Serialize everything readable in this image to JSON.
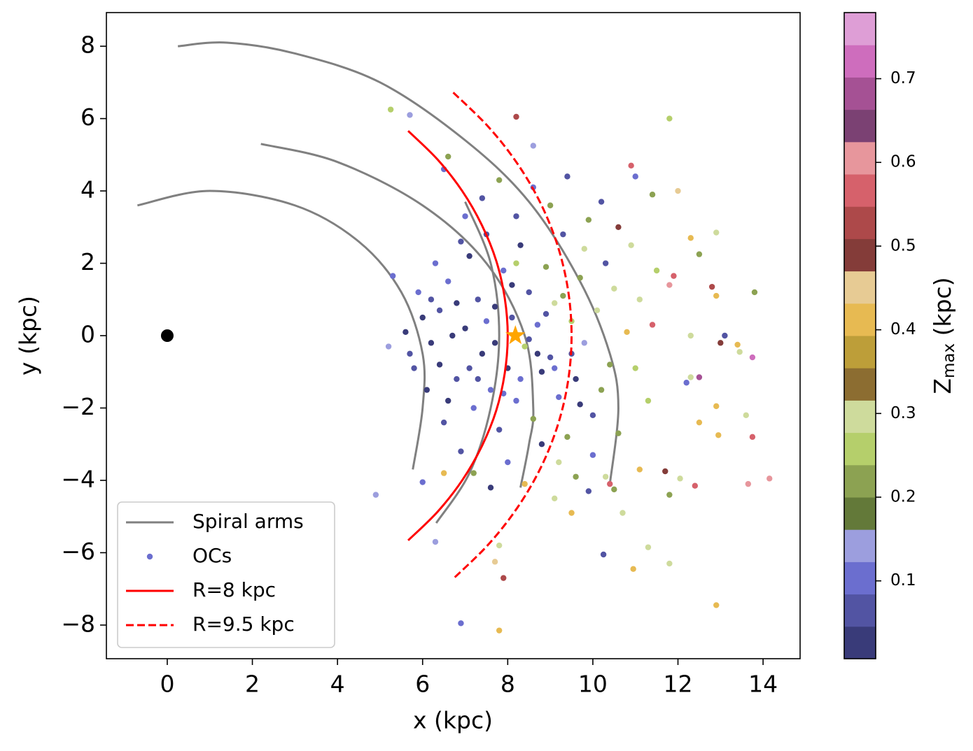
{
  "chart_data": {
    "type": "scatter",
    "xlabel": "x (kpc)",
    "ylabel": "y (kpc)",
    "colorbar_label_parts": [
      "Z",
      "max",
      " (kpc)"
    ],
    "xlim": [
      -1.43,
      14.87
    ],
    "ylim": [
      -8.93,
      8.93
    ],
    "xticks": [
      0,
      2,
      4,
      6,
      8,
      10,
      12,
      14
    ],
    "yticks": [
      {
        "value": -8,
        "label": "−8"
      },
      {
        "value": -6,
        "label": "−6"
      },
      {
        "value": -4,
        "label": "−4"
      },
      {
        "value": -2,
        "label": "−2"
      },
      0,
      2,
      4,
      6,
      8
    ],
    "clim": [
      0.007,
      0.779
    ],
    "cticks": [
      0.1,
      0.2,
      0.3,
      0.4,
      0.5,
      0.6,
      0.7
    ],
    "colormap": [
      "#393b79",
      "#5254a3",
      "#6b6ecf",
      "#9c9ede",
      "#637939",
      "#8ca252",
      "#b5cf6b",
      "#cedb9c",
      "#8c6d31",
      "#bd9e39",
      "#e7ba52",
      "#e7cb94",
      "#843c39",
      "#ad494a",
      "#d6616b",
      "#e7969c",
      "#7b4173",
      "#a55194",
      "#ce6dbd",
      "#de9ed6"
    ],
    "legend": "lower left",
    "galactic_center": {
      "x": 0,
      "y": 0,
      "color": "#000000"
    },
    "sun": {
      "x": 8.18,
      "y": 0,
      "color": "#ffa500"
    },
    "series": [
      {
        "name": "Spiral arms",
        "color": "#808080",
        "style": "solid",
        "lines": [
          {
            "x": [
              0.25,
              1.4,
              3,
              5,
              7,
              8.5,
              9.7,
              10.4,
              10.6,
              10.4
            ],
            "y": [
              8.0,
              8.1,
              7.8,
              7.0,
              5.4,
              3.7,
              1.5,
              -0.5,
              -2.0,
              -4.1
            ]
          },
          {
            "x": [
              2.2,
              4,
              6,
              7.5,
              8.4,
              8.6,
              8.5,
              8.3
            ],
            "y": [
              5.3,
              4.8,
              3.6,
              2.0,
              0,
              -2.0,
              -3.0,
              -4.2
            ]
          },
          {
            "x": [
              -0.7,
              1,
              3,
              4.5,
              5.5,
              6.0,
              6.0,
              5.77
            ],
            "y": [
              3.6,
              4.0,
              3.6,
              2.6,
              1.2,
              -0.5,
              -2.0,
              -3.7
            ]
          },
          {
            "x": [
              7.0,
              7.6,
              7.8,
              7.6,
              7.1,
              6.32
            ],
            "y": [
              3.7,
              2.0,
              0,
              -2.0,
              -3.8,
              -5.18
            ]
          }
        ]
      },
      {
        "name": "OCs",
        "type": "scatter",
        "color": "#6b6ecf",
        "x": [
          5.25,
          5.7,
          8.2,
          11.8,
          8.6,
          6.6,
          6.5,
          10.9,
          11,
          12,
          11.4,
          12.3,
          12.9,
          12.5,
          11.9,
          11.8,
          12.8,
          12.9,
          13.8,
          12.3,
          13,
          13.1,
          13.4,
          13.45,
          13.75,
          12.5,
          12.2,
          12.3,
          12.9,
          13.6,
          13.75,
          12.5,
          12.95,
          12.4,
          13.65,
          14.15,
          12.05,
          11.8,
          11.7,
          11.1,
          11.3,
          11.8,
          10.95,
          10.25,
          12.9,
          7.8,
          6.9,
          7.9,
          7.7,
          7.8,
          4.9,
          5.2,
          5.3,
          6.3,
          6.5,
          6.0,
          10.7,
          10.4,
          10.5,
          9.5,
          9.1,
          6.0,
          6.2,
          6.4,
          6.6,
          6.8,
          7.0,
          7.1,
          7.2,
          7.3,
          7.4,
          7.5,
          7.6,
          7.7,
          7.8,
          7.9,
          8.0,
          8.1,
          8.2,
          8.3,
          8.4,
          8.5,
          8.6,
          8.7,
          8.8,
          8.9,
          9.0,
          9.1,
          9.2,
          9.3,
          9.4,
          9.5,
          9.6,
          9.7,
          9.8,
          9.9,
          10.0,
          10.1,
          10.2,
          10.3,
          10.4,
          10.5,
          10.6,
          10.8,
          11.0,
          11.1,
          11.3,
          11.4,
          11.5,
          5.8,
          5.9,
          6.1,
          6.3,
          6.5,
          6.7,
          6.9,
          7.0,
          7.2,
          7.4,
          7.6,
          7.8,
          8.0,
          8.2,
          8.4,
          8.6,
          8.8,
          9.0,
          9.2,
          9.4,
          9.6,
          9.8,
          10.0,
          10.2,
          6.2,
          6.4,
          6.8,
          7.1,
          7.5,
          7.7,
          8.1,
          8.3,
          8.5,
          8.7,
          8.9,
          9.1,
          9.3,
          9.5,
          9.7,
          7.3,
          6.6,
          6.9,
          7.9,
          8.2,
          5.6,
          5.7,
          10.6,
          10.9,
          9.9,
          10.3
        ],
        "y": [
          6.25,
          6.1,
          6.05,
          6.0,
          5.25,
          4.95,
          4.6,
          4.7,
          4.4,
          4,
          3.9,
          2.7,
          2.85,
          2.25,
          1.65,
          1.4,
          1.35,
          1.1,
          1.2,
          0,
          -0.2,
          0,
          -0.25,
          -0.45,
          -0.6,
          -1.15,
          -1.3,
          -1.15,
          -1.95,
          -2.2,
          -2.8,
          -2.4,
          -2.75,
          -4.15,
          -4.1,
          -3.95,
          -3.95,
          -4.4,
          -3.75,
          -3.7,
          -5.85,
          -6.3,
          -6.45,
          -6.05,
          -7.45,
          -8.15,
          -7.95,
          -6.7,
          -6.25,
          -5.8,
          -4.4,
          -0.3,
          1.65,
          -5.7,
          -3.8,
          -4.05,
          -4.9,
          -4.1,
          -4.25,
          -4.9,
          -4.5,
          0.5,
          1.0,
          -0.8,
          1.5,
          -1.2,
          0.2,
          2.2,
          -2.0,
          1.0,
          -0.5,
          2.8,
          -1.5,
          0.8,
          -2.6,
          1.8,
          -0.9,
          0.5,
          -1.8,
          2.5,
          -0.3,
          1.2,
          -2.3,
          0.3,
          -1.0,
          1.9,
          -0.6,
          0.9,
          -1.7,
          2.8,
          -2.8,
          0.4,
          -1.2,
          1.6,
          -0.2,
          3.2,
          -2.2,
          0.7,
          -1.5,
          2.0,
          -0.8,
          1.3,
          -2.7,
          0.1,
          -0.9,
          1.0,
          -1.8,
          0.3,
          1.8,
          -0.9,
          1.2,
          -1.5,
          2.0,
          -2.4,
          0.0,
          -3.2,
          3.3,
          -3.8,
          3.8,
          -4.2,
          4.3,
          -3.5,
          3.3,
          -4.1,
          4.1,
          -3.0,
          3.6,
          -3.5,
          4.4,
          -3.9,
          2.4,
          -3.3,
          3.7,
          -0.2,
          0.7,
          0.9,
          -0.9,
          0.4,
          -0.2,
          1.4,
          -1.2,
          -0.1,
          -0.5,
          0.6,
          -0.9,
          1.1,
          -0.5,
          -1.9,
          -1.2,
          -1.8,
          2.6,
          -1.6,
          2.0,
          0.1,
          -0.5,
          3.0,
          2.5,
          -4.3,
          -3.9
        ],
        "zmax": [
          0.27,
          0.13,
          0.52,
          0.27,
          0.13,
          0.2,
          0.1,
          0.55,
          0.12,
          0.45,
          0.22,
          0.4,
          0.3,
          0.2,
          0.58,
          0.62,
          0.52,
          0.4,
          0.2,
          0.3,
          0.5,
          0.05,
          0.4,
          0.3,
          0.72,
          0.68,
          0.1,
          0.3,
          0.4,
          0.3,
          0.55,
          0.4,
          0.4,
          0.55,
          0.62,
          0.62,
          0.3,
          0.2,
          0.5,
          0.4,
          0.3,
          0.3,
          0.4,
          0.05,
          0.4,
          0.4,
          0.1,
          0.52,
          0.45,
          0.3,
          0.13,
          0.13,
          0.1,
          0.13,
          0.4,
          0.1,
          0.3,
          0.55,
          0.2,
          0.4,
          0.3,
          0.03,
          0.05,
          0.02,
          0.1,
          0.06,
          0.03,
          0.04,
          0.12,
          0.05,
          0.02,
          0.06,
          0.1,
          0.03,
          0.05,
          0.12,
          0.04,
          0.06,
          0.1,
          0.03,
          0.25,
          0.05,
          0.22,
          0.1,
          0.04,
          0.2,
          0.06,
          0.3,
          0.12,
          0.05,
          0.21,
          0.27,
          0.04,
          0.2,
          0.13,
          0.22,
          0.07,
          0.28,
          0.2,
          0.05,
          0.22,
          0.3,
          0.21,
          0.42,
          0.25,
          0.3,
          0.27,
          0.55,
          0.25,
          0.05,
          0.1,
          0.04,
          0.12,
          0.06,
          0.02,
          0.05,
          0.1,
          0.22,
          0.06,
          0.03,
          0.21,
          0.1,
          0.05,
          0.4,
          0.12,
          0.04,
          0.2,
          0.3,
          0.05,
          0.22,
          0.28,
          0.1,
          0.05,
          0.03,
          0.05,
          0.02,
          0.06,
          0.1,
          0.04,
          0.03,
          0.12,
          0.06,
          0.02,
          0.05,
          0.1,
          0.22,
          0.06,
          0.04,
          0.05,
          0.03,
          0.06,
          0.1,
          0.24,
          0.04,
          0.08,
          0.5,
          0.3,
          0.06,
          0.3
        ]
      },
      {
        "name": "R=8 kpc",
        "color": "#ff0000",
        "style": "solid",
        "lines": [
          {
            "x": [
              5.66,
              6.35,
              6.93,
              7.39,
              7.73,
              7.93,
              8,
              7.93,
              7.73,
              7.39,
              6.93,
              6.35,
              5.66
            ],
            "y": [
              5.66,
              4.87,
              4,
              3.06,
              2.07,
              1.04,
              0,
              -1.04,
              -2.07,
              -3.06,
              -4,
              -4.87,
              -5.66
            ]
          }
        ]
      },
      {
        "name": "R=9.5 kpc",
        "color": "#ff0000",
        "style": "dashed",
        "lines": [
          {
            "x": [
              6.72,
              7.54,
              8.23,
              8.78,
              9.18,
              9.42,
              9.5,
              9.42,
              9.18,
              8.78,
              8.23,
              7.54,
              6.72
            ],
            "y": [
              6.72,
              5.78,
              4.75,
              3.64,
              2.46,
              1.24,
              0,
              -1.24,
              -2.46,
              -3.64,
              -4.75,
              -5.78,
              -6.72
            ]
          }
        ]
      }
    ]
  }
}
